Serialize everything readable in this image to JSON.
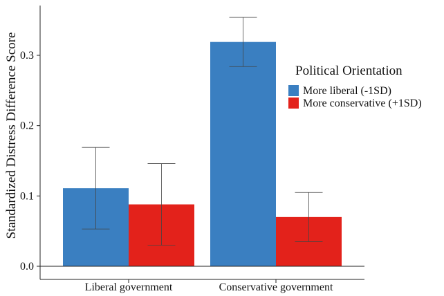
{
  "chart_data": {
    "type": "bar",
    "title": "",
    "xlabel": "",
    "ylabel": "Standardized Distress Difference Score",
    "categories": [
      "Liberal government",
      "Conservative government"
    ],
    "ylim": [
      0,
      0.35
    ],
    "yticks": [
      0.0,
      0.1,
      0.2,
      0.3
    ],
    "ytick_labels": [
      "0.0",
      "0.1",
      "0.2",
      "0.3"
    ],
    "grid": false,
    "legend": {
      "title": "Political Orientation",
      "placement": "right"
    },
    "series": [
      {
        "name": "More liberal (-1SD)",
        "color": "#3A7FC1",
        "values": [
          0.111,
          0.319
        ],
        "error_low": [
          0.053,
          0.284
        ],
        "error_high": [
          0.169,
          0.354
        ]
      },
      {
        "name": "More conservative (+1SD)",
        "color": "#E3221B",
        "values": [
          0.088,
          0.07
        ],
        "error_low": [
          0.03,
          0.035
        ],
        "error_high": [
          0.146,
          0.105
        ]
      }
    ]
  }
}
